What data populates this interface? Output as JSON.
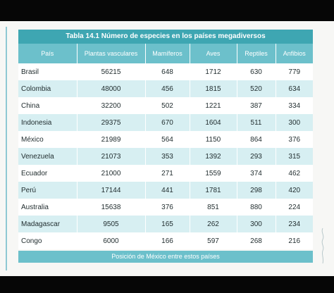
{
  "table": {
    "caption": "Tabla 14.1 Número de especies en los países megadiversos",
    "headers": [
      "País",
      "Plantas vasculares",
      "Mamíferos",
      "Aves",
      "Reptiles",
      "Anfibios"
    ],
    "rows": [
      [
        "Brasil",
        "56215",
        "648",
        "1712",
        "630",
        "779"
      ],
      [
        "Colombia",
        "48000",
        "456",
        "1815",
        "520",
        "634"
      ],
      [
        "China",
        "32200",
        "502",
        "1221",
        "387",
        "334"
      ],
      [
        "Indonesia",
        "29375",
        "670",
        "1604",
        "511",
        "300"
      ],
      [
        "México",
        "21989",
        "564",
        "1150",
        "864",
        "376"
      ],
      [
        "Venezuela",
        "21073",
        "353",
        "1392",
        "293",
        "315"
      ],
      [
        "Ecuador",
        "21000",
        "271",
        "1559",
        "374",
        "462"
      ],
      [
        "Perú",
        "17144",
        "441",
        "1781",
        "298",
        "420"
      ],
      [
        "Australia",
        "15638",
        "376",
        "851",
        "880",
        "224"
      ],
      [
        "Madagascar",
        "9505",
        "165",
        "262",
        "300",
        "234"
      ],
      [
        "Congo",
        "6000",
        "166",
        "597",
        "268",
        "216"
      ]
    ],
    "footer": "Posición de México entre estos países"
  },
  "colors": {
    "caption_bg": "#3ea6b2",
    "header_bg": "#6cc0cb",
    "stripe_bg": "#d7eff2"
  }
}
